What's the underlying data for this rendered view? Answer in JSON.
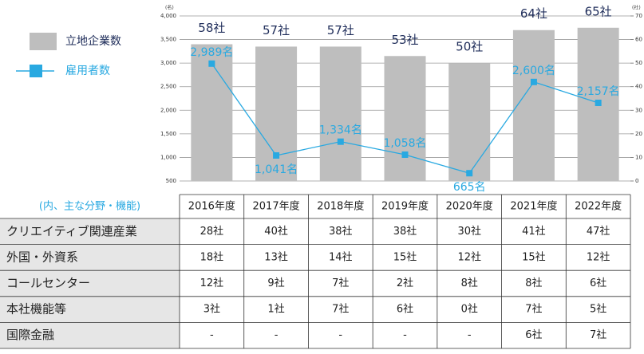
{
  "chart_data": {
    "type": "combo",
    "categories": [
      "2016年度",
      "2017年度",
      "2018年度",
      "2019年度",
      "2020年度",
      "2021年度",
      "2022年度"
    ],
    "series": [
      {
        "name": "立地企業数",
        "type": "bar",
        "axis": "y2",
        "color": "#bebebe",
        "values": [
          58,
          57,
          57,
          53,
          50,
          64,
          65
        ],
        "value_labels": [
          "58社",
          "57社",
          "57社",
          "53社",
          "50社",
          "64社",
          "65社"
        ]
      },
      {
        "name": "雇用者数",
        "type": "line",
        "axis": "y",
        "color": "#29a9e1",
        "values": [
          2989,
          1041,
          1334,
          1058,
          665,
          2600,
          2157
        ],
        "value_labels": [
          "2,989名",
          "1,041名",
          "1,334名",
          "1,058名",
          "665名",
          "2,600名",
          "2,157名"
        ]
      }
    ],
    "y_unit": "(名)",
    "y2_unit": "(社)",
    "ylim": [
      500,
      4000
    ],
    "yticks": [
      500,
      {
        "value": 1000,
        "label": "1,000"
      },
      {
        "value": 1500,
        "label": "1,500"
      },
      {
        "value": 2000,
        "label": "2,000"
      },
      {
        "value": 2500,
        "label": "2,500"
      },
      {
        "value": 3000,
        "label": "3,000"
      },
      {
        "value": 3500,
        "label": "3,500"
      },
      {
        "value": 4000,
        "label": "4,000"
      }
    ],
    "y2lim": [
      0,
      70
    ],
    "y2ticks": [
      0,
      10,
      20,
      30,
      40,
      50,
      60,
      70
    ],
    "grid": true
  },
  "table": {
    "corner": "(内、主な分野・機能)",
    "rows": [
      [
        "クリエイティブ関連産業",
        "28社",
        "40社",
        "38社",
        "38社",
        "30社",
        "41社",
        "47社"
      ],
      [
        "外国・外資系",
        "18社",
        "13社",
        "14社",
        "15社",
        "12社",
        "15社",
        "12社"
      ],
      [
        "コールセンター",
        "12社",
        "9社",
        "7社",
        "2社",
        "8社",
        "8社",
        "6社"
      ],
      [
        "本社機能等",
        "3社",
        "1社",
        "7社",
        "6社",
        "0社",
        "7社",
        "5社"
      ],
      [
        "国際金融",
        "-",
        "-",
        "-",
        "-",
        "-",
        "6社",
        "7社"
      ]
    ]
  }
}
